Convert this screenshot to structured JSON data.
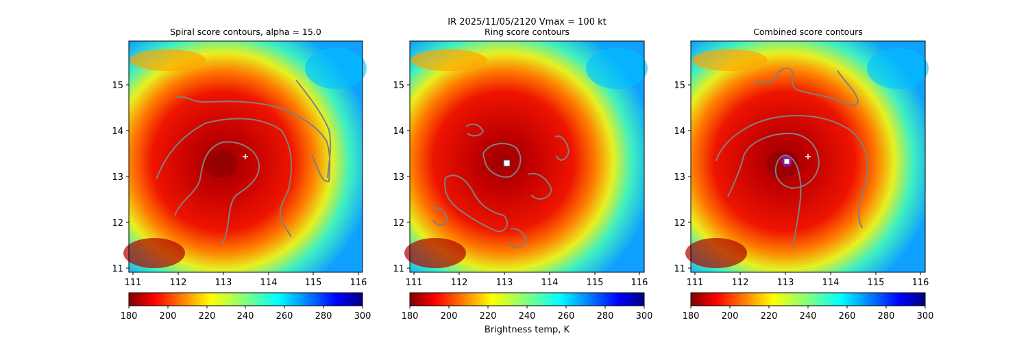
{
  "figure": {
    "suptitle": "IR  2025/11/05/2120    Vmax = 100 kt",
    "colorbar_label": "Brightness temp, K"
  },
  "chart_data": [
    {
      "type": "heatmap",
      "title": "Spiral score contours, alpha = 15.0",
      "xlim": [
        110.9,
        116.1
      ],
      "ylim": [
        10.95,
        15.95
      ],
      "xticks": [
        111,
        112,
        113,
        114,
        115,
        116
      ],
      "yticks": [
        11,
        12,
        13,
        14,
        15
      ],
      "colormap": "jet",
      "colorbar": {
        "range": [
          180,
          300
        ],
        "ticks": [
          180,
          200,
          220,
          240,
          260,
          280,
          300
        ]
      },
      "contour_color": "#808080",
      "markers": [
        {
          "kind": "plus",
          "x": 113.45,
          "y": 13.43,
          "color": "#ffffff"
        }
      ]
    },
    {
      "type": "heatmap",
      "title": "Ring score contours",
      "xlim": [
        110.9,
        116.1
      ],
      "ylim": [
        10.95,
        15.95
      ],
      "xticks": [
        111,
        112,
        113,
        114,
        115,
        116
      ],
      "yticks": [
        11,
        12,
        13,
        14,
        15
      ],
      "colormap": "jet",
      "colorbar": {
        "range": [
          180,
          300
        ],
        "ticks": [
          180,
          200,
          220,
          240,
          260,
          280,
          300
        ]
      },
      "contour_color": "#808080",
      "markers": [
        {
          "kind": "square",
          "x": 113.05,
          "y": 13.28,
          "color": "#ffffff"
        }
      ]
    },
    {
      "type": "heatmap",
      "title": "Combined score contours",
      "xlim": [
        110.9,
        116.1
      ],
      "ylim": [
        10.95,
        15.95
      ],
      "xticks": [
        111,
        112,
        113,
        114,
        115,
        116
      ],
      "yticks": [
        11,
        12,
        13,
        14,
        15
      ],
      "colormap": "jet",
      "colorbar": {
        "range": [
          180,
          300
        ],
        "ticks": [
          180,
          200,
          220,
          240,
          260,
          280,
          300
        ]
      },
      "contour_color": "#808080",
      "markers": [
        {
          "kind": "plus",
          "x": 113.45,
          "y": 13.43,
          "color": "#ffffff"
        },
        {
          "kind": "circle",
          "x": 113.0,
          "y": 13.33,
          "color": "#aa00ff"
        },
        {
          "kind": "square",
          "x": 113.0,
          "y": 13.33,
          "color": "#ffffff"
        }
      ]
    }
  ]
}
